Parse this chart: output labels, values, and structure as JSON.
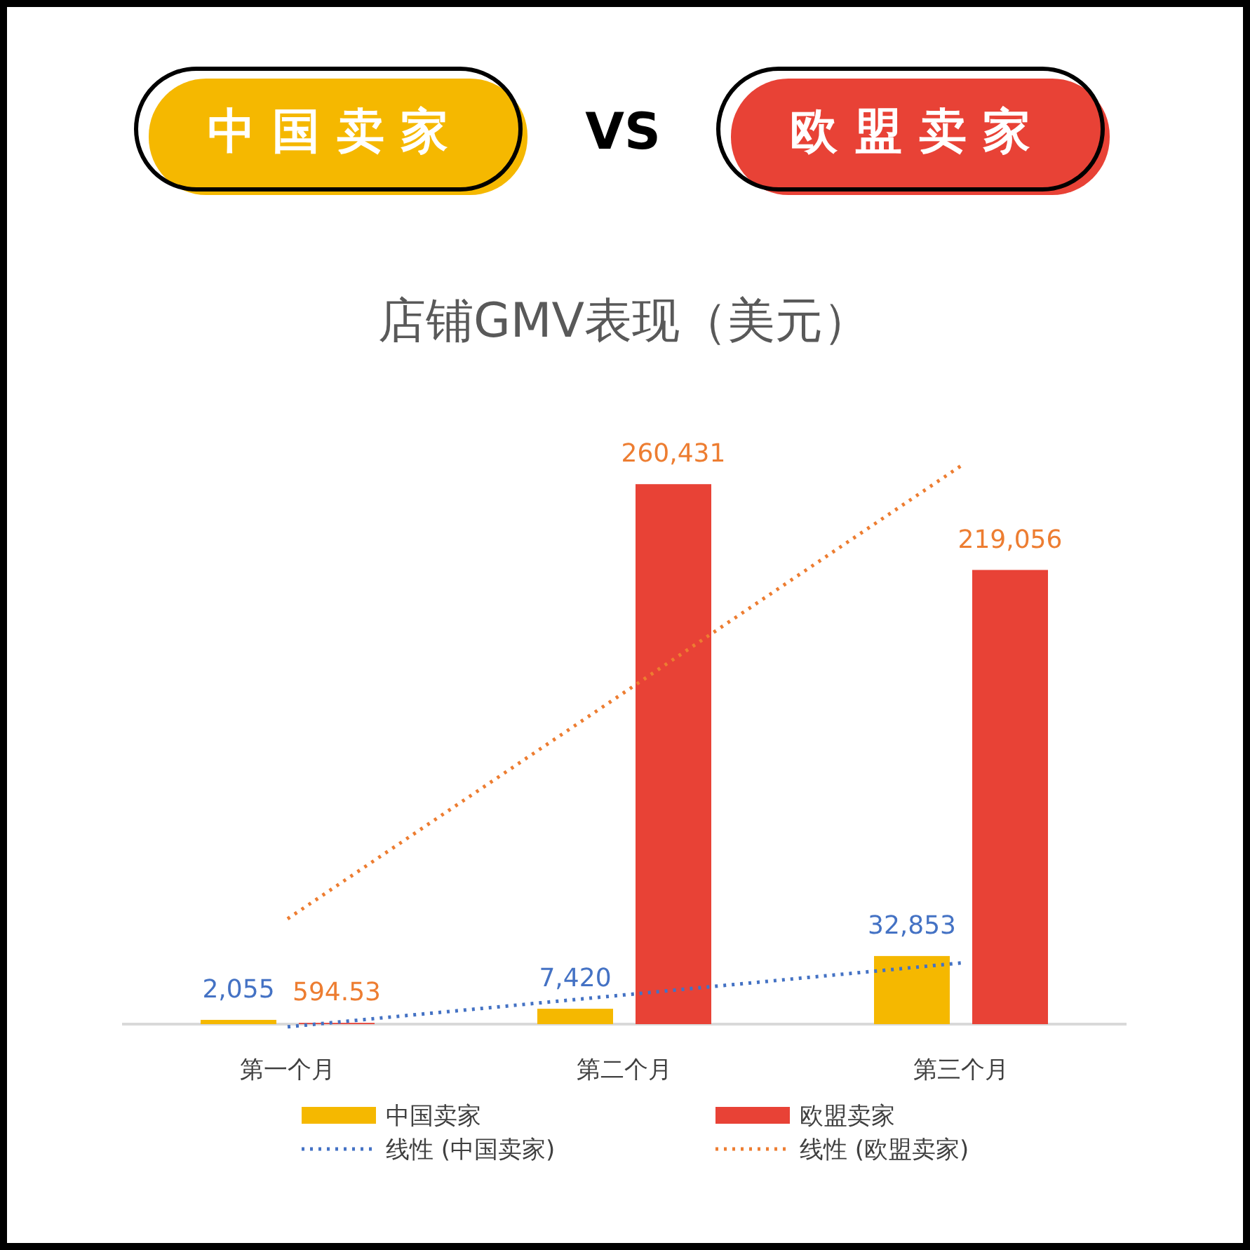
{
  "chart_data": {
    "type": "bar",
    "title": "店铺GMV表现（美元）",
    "annotations": [
      "中 国 卖 家",
      "VS",
      "欧 盟 卖 家"
    ],
    "categories": [
      "第一个月",
      "第二个月",
      "第三个月"
    ],
    "series": [
      {
        "name": "中国卖家",
        "color": "#f5b800",
        "values": [
          2055,
          7420,
          32853
        ],
        "value_labels": [
          "2,055",
          "7,420",
          "32,853"
        ]
      },
      {
        "name": "欧盟卖家",
        "color": "#e84236",
        "values": [
          594.53,
          260431,
          219056
        ],
        "value_labels": [
          "594.53",
          "260,431",
          "219,056"
        ]
      },
      {
        "name": "线性 (中国卖家)",
        "type": "line",
        "color": "#4472c4",
        "line_style": "dotted",
        "values": [
          -1300,
          14100,
          29500
        ]
      },
      {
        "name": "线性 (欧盟卖家)",
        "type": "line",
        "color": "#ed7d31",
        "line_style": "dotted",
        "values": [
          50800,
          160000,
          269300
        ]
      }
    ],
    "legend": "bottom"
  }
}
